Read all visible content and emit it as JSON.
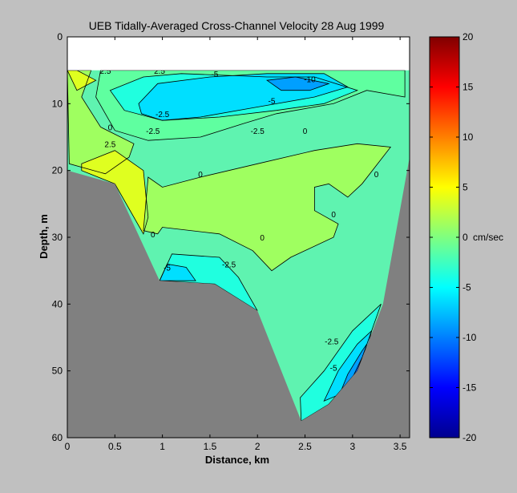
{
  "chart_data": {
    "type": "heatmap",
    "title": "UEB   Tidally-Averaged  Cross-Channel Velocity   28 Aug 1999",
    "xlabel": "Distance, km",
    "ylabel": "Depth, m",
    "xlim": [
      0,
      3.6
    ],
    "ylim": [
      0,
      60
    ],
    "y_reversed": true,
    "xticks": [
      "0",
      "0.5",
      "1",
      "1.5",
      "2",
      "2.5",
      "3",
      "3.5"
    ],
    "yticks": [
      "0",
      "10",
      "20",
      "30",
      "40",
      "50",
      "60"
    ],
    "colorbar": {
      "range": [
        -20,
        20
      ],
      "ticks": [
        "20",
        "15",
        "10",
        "5",
        "0",
        "-5",
        "-10",
        "-15",
        "-20"
      ],
      "unit": "cm/sec",
      "colormap": "jet"
    },
    "contour_levels": [
      -10,
      -7.5,
      -5,
      -2.5,
      0,
      2.5
    ],
    "contour_labels": [
      "2.5",
      "2.5",
      "-5",
      "-10",
      "-2.5",
      "-5",
      "0",
      "-2.5",
      "-2.5",
      "0",
      "2.5",
      "0",
      "0",
      "0",
      "0",
      "0",
      "-5",
      "-2.5",
      "-2.5",
      "-5"
    ],
    "bottom_profile": {
      "x": [
        0,
        0.5,
        0.97,
        1.55,
        2.0,
        2.46,
        2.75,
        3.05,
        3.32,
        3.6
      ],
      "depth": [
        20,
        22,
        36.5,
        37,
        41,
        57.5,
        55,
        50,
        40,
        18
      ]
    },
    "data_top_depth": 5,
    "colors": {
      "background": "#c0c0c0",
      "land": "#808080",
      "no_data": "#ffffff"
    }
  }
}
